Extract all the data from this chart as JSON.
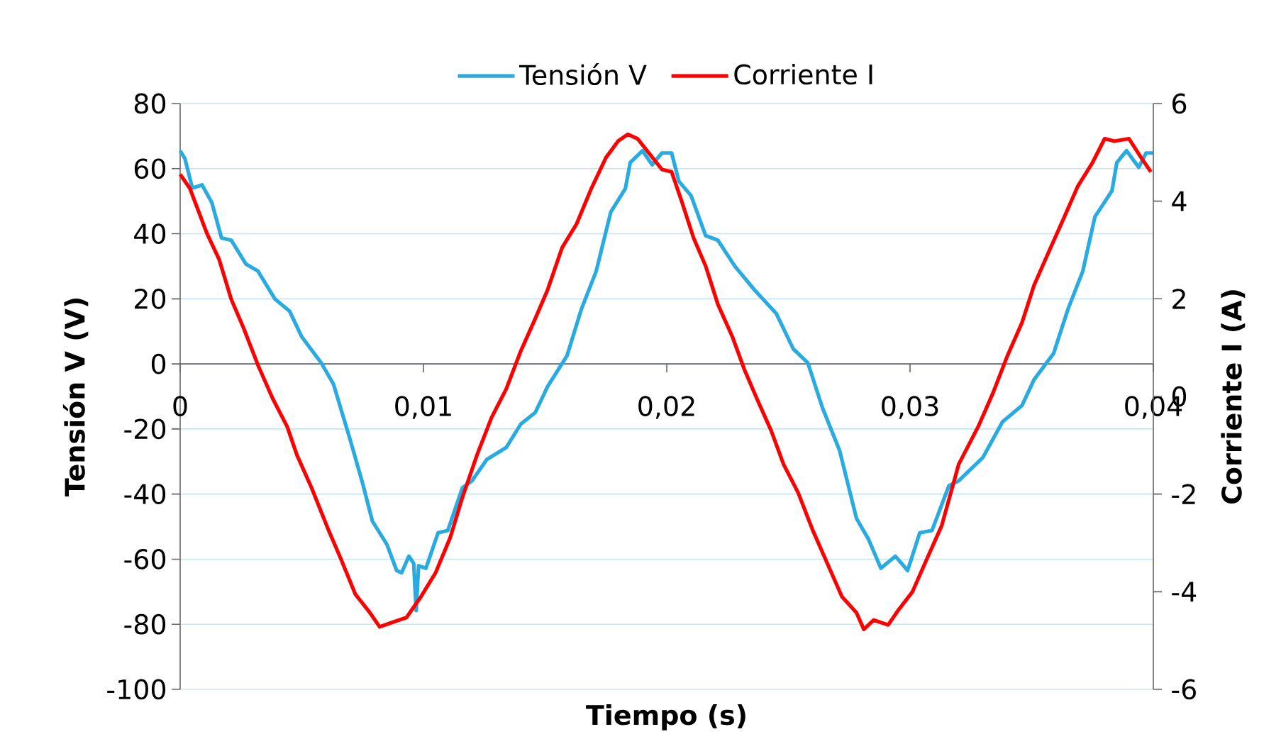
{
  "chart_data": {
    "type": "line",
    "xlabel": "Tiempo (s)",
    "ylabel": "Tensión V (V)",
    "y2label": "Corriente I (A)",
    "xlim": [
      0,
      0.04
    ],
    "xticks": [
      {
        "value": 0,
        "label": "0"
      },
      {
        "value": 0.01,
        "label": "0,01"
      },
      {
        "value": 0.02,
        "label": "0,02"
      },
      {
        "value": 0.03,
        "label": "0,03"
      },
      {
        "value": 0.04,
        "label": "0,04"
      }
    ],
    "ylim": [
      -100,
      80
    ],
    "yticks": [
      -100,
      -80,
      -60,
      -40,
      -20,
      0,
      20,
      40,
      60,
      80
    ],
    "y2lim": [
      -6,
      6
    ],
    "y2ticks": [
      -6,
      -4,
      -2,
      0,
      2,
      4,
      6
    ],
    "grid": "y",
    "legend": "top",
    "marker": "none",
    "line_style": "solid",
    "series": [
      {
        "name": "Tensión V",
        "color": "#29abe2",
        "x": [
          0,
          0.0002,
          0.0005,
          0.0009,
          0.0013,
          0.0017,
          0.0021,
          0.0027,
          0.0032,
          0.0039,
          0.0045,
          0.005,
          0.0058,
          0.0063,
          0.007,
          0.0075,
          0.0079,
          0.0085,
          0.0089,
          0.0091,
          0.0094,
          0.0096,
          0.0097,
          0.0098,
          0.0101,
          0.0106,
          0.011,
          0.0116,
          0.012,
          0.0126,
          0.0134,
          0.014,
          0.0146,
          0.0151,
          0.0159,
          0.0165,
          0.0171,
          0.0177,
          0.0183,
          0.0185,
          0.019,
          0.0194,
          0.0198,
          0.0202,
          0.0205,
          0.021,
          0.0216,
          0.0221,
          0.0228,
          0.0236,
          0.0245,
          0.0252,
          0.0258,
          0.0264,
          0.0271,
          0.0278,
          0.0283,
          0.0288,
          0.0294,
          0.0299,
          0.0304,
          0.0309,
          0.0316,
          0.032,
          0.033,
          0.0338,
          0.0346,
          0.0351,
          0.0359,
          0.0365,
          0.0371,
          0.0376,
          0.0383,
          0.0385,
          0.0389,
          0.0394,
          0.0397,
          0.04
        ],
        "values": [
          65.5,
          63,
          54,
          55,
          49.6,
          38.7,
          38,
          30.7,
          28.5,
          19.9,
          16.2,
          8.3,
          0.3,
          -6.2,
          -23.6,
          -36.7,
          -48.3,
          -55.5,
          -63.5,
          -64.2,
          -59.1,
          -61.3,
          -75.8,
          -62,
          -62.8,
          -51.9,
          -51.2,
          -38.1,
          -35.9,
          -29.4,
          -25.7,
          -18.5,
          -14.9,
          -7,
          2.5,
          17,
          28.5,
          46.7,
          53.9,
          61.9,
          65.5,
          61.2,
          64.8,
          64.8,
          56.1,
          51.7,
          39.4,
          38,
          30,
          22.8,
          15.5,
          4.6,
          0.3,
          -13.5,
          -26.5,
          -47.5,
          -54,
          -62.8,
          -59.1,
          -63.5,
          -51.9,
          -51.2,
          -37.4,
          -35.9,
          -28.7,
          -17.8,
          -12.8,
          -4.8,
          3.2,
          17,
          28.5,
          45.2,
          53.2,
          61.9,
          65.5,
          60.4,
          64.8,
          64.8
        ]
      },
      {
        "name": "Corriente I",
        "color": "#ff0000",
        "axis": "y2",
        "x": [
          0,
          0.0004,
          0.0011,
          0.0016,
          0.0021,
          0.0026,
          0.0032,
          0.0038,
          0.0044,
          0.0048,
          0.0054,
          0.0061,
          0.0066,
          0.0072,
          0.0078,
          0.0082,
          0.0087,
          0.0093,
          0.0099,
          0.0105,
          0.0111,
          0.0116,
          0.0122,
          0.0128,
          0.0134,
          0.014,
          0.0146,
          0.0151,
          0.0157,
          0.0163,
          0.0169,
          0.0175,
          0.018,
          0.0184,
          0.0188,
          0.0192,
          0.0198,
          0.0202,
          0.0206,
          0.0211,
          0.0216,
          0.0221,
          0.0227,
          0.0232,
          0.0237,
          0.0243,
          0.0248,
          0.0254,
          0.026,
          0.0266,
          0.0272,
          0.0278,
          0.0281,
          0.0285,
          0.0291,
          0.0295,
          0.0301,
          0.0307,
          0.0313,
          0.032,
          0.0328,
          0.0334,
          0.034,
          0.0346,
          0.0351,
          0.0357,
          0.0363,
          0.0369,
          0.0375,
          0.038,
          0.0384,
          0.039,
          0.0395,
          0.0399
        ],
        "values": [
          4.55,
          4.26,
          3.34,
          2.81,
          1.99,
          1.41,
          0.64,
          -0.04,
          -0.62,
          -1.2,
          -1.87,
          -2.74,
          -3.32,
          -4.05,
          -4.43,
          -4.72,
          -4.63,
          -4.53,
          -4.1,
          -3.61,
          -2.89,
          -2.07,
          -1.2,
          -0.43,
          0.15,
          0.93,
          1.6,
          2.18,
          3.05,
          3.54,
          4.26,
          4.89,
          5.23,
          5.37,
          5.28,
          5.03,
          4.65,
          4.6,
          4.02,
          3.25,
          2.67,
          1.89,
          1.22,
          0.54,
          -0.04,
          -0.71,
          -1.39,
          -1.97,
          -2.74,
          -3.42,
          -4.1,
          -4.43,
          -4.77,
          -4.58,
          -4.68,
          -4.39,
          -4,
          -3.32,
          -2.65,
          -1.39,
          -0.62,
          0.06,
          0.83,
          1.51,
          2.28,
          2.96,
          3.63,
          4.31,
          4.79,
          5.28,
          5.23,
          5.28,
          4.89,
          4.6
        ]
      }
    ]
  }
}
